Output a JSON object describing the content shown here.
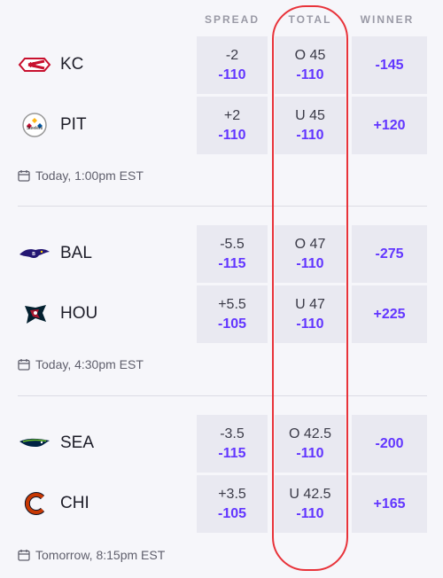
{
  "headers": {
    "spread": "SPREAD",
    "total": "TOTAL",
    "winner": "WINNER"
  },
  "games": [
    {
      "time": "Today, 1:00pm EST",
      "teams": [
        {
          "abbr": "KC",
          "logo": "chiefs-logo",
          "spread_line": "-2",
          "spread_odds": "-110",
          "total_line": "O 45",
          "total_odds": "-110",
          "winner": "-145"
        },
        {
          "abbr": "PIT",
          "logo": "steelers-logo",
          "spread_line": "+2",
          "spread_odds": "-110",
          "total_line": "U 45",
          "total_odds": "-110",
          "winner": "+120"
        }
      ]
    },
    {
      "time": "Today, 4:30pm EST",
      "teams": [
        {
          "abbr": "BAL",
          "logo": "ravens-logo",
          "spread_line": "-5.5",
          "spread_odds": "-115",
          "total_line": "O 47",
          "total_odds": "-110",
          "winner": "-275"
        },
        {
          "abbr": "HOU",
          "logo": "texans-logo",
          "spread_line": "+5.5",
          "spread_odds": "-105",
          "total_line": "U 47",
          "total_odds": "-110",
          "winner": "+225"
        }
      ]
    },
    {
      "time": "Tomorrow, 8:15pm EST",
      "teams": [
        {
          "abbr": "SEA",
          "logo": "seahawks-logo",
          "spread_line": "-3.5",
          "spread_odds": "-115",
          "total_line": "O 42.5",
          "total_odds": "-110",
          "winner": "-200"
        },
        {
          "abbr": "CHI",
          "logo": "bears-logo",
          "spread_line": "+3.5",
          "spread_odds": "-105",
          "total_line": "U 42.5",
          "total_odds": "-110",
          "winner": "+165"
        }
      ]
    }
  ],
  "colors": {
    "accent": "#6236ff",
    "highlight": "#e8333a",
    "cell_bg": "#e9e9f1"
  }
}
